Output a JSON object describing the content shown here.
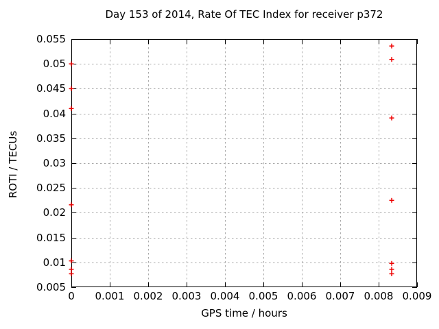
{
  "window": {
    "background": "#ffffff"
  },
  "chart_data": {
    "type": "scatter",
    "title": "Day 153 of 2014, Rate Of TEC Index for receiver p372",
    "xlabel": "GPS time / hours",
    "ylabel": "ROTI / TECUs",
    "xlim": [
      0,
      0.009
    ],
    "ylim": [
      0.005,
      0.055
    ],
    "xticks": {
      "values": [
        0,
        0.001,
        0.002,
        0.003,
        0.004,
        0.005,
        0.006,
        0.007,
        0.008,
        0.009
      ],
      "labels": [
        "0",
        "0.001",
        "0.002",
        "0.003",
        "0.004",
        "0.005",
        "0.006",
        "0.007",
        "0.008",
        "0.009"
      ]
    },
    "yticks": {
      "values": [
        0.005,
        0.01,
        0.015,
        0.02,
        0.025,
        0.03,
        0.035,
        0.04,
        0.045,
        0.05,
        0.055
      ],
      "labels": [
        "0.005",
        "0.01",
        "0.015",
        "0.02",
        "0.025",
        "0.03",
        "0.035",
        "0.04",
        "0.045",
        "0.05",
        "0.055"
      ]
    },
    "grid": true,
    "legend_position": "none",
    "marker": {
      "symbol": "plus",
      "color": "#ee0000",
      "size": 7
    },
    "grid_color": "#aaaaaa",
    "axis_color": "#000000",
    "series": [
      {
        "name": "ROTI",
        "points": [
          [
            0,
            0.05
          ],
          [
            0,
            0.045
          ],
          [
            0,
            0.041
          ],
          [
            0,
            0.0216
          ],
          [
            0,
            0.0103
          ],
          [
            0,
            0.0086
          ],
          [
            0,
            0.0077
          ],
          [
            0.00834,
            0.0536
          ],
          [
            0.00834,
            0.0509
          ],
          [
            0.00834,
            0.0391
          ],
          [
            0.00834,
            0.0225
          ],
          [
            0.00834,
            0.0098
          ],
          [
            0.00834,
            0.0086
          ],
          [
            0.00834,
            0.0077
          ]
        ]
      }
    ]
  }
}
